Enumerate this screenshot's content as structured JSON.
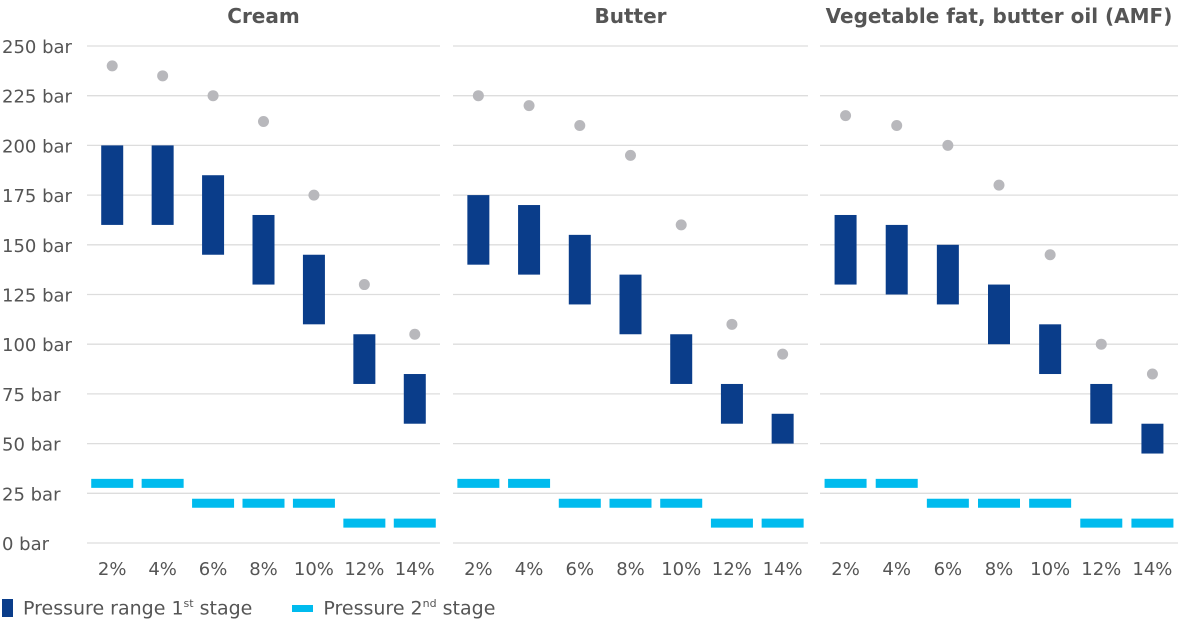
{
  "chart_data": [
    {
      "type": "floating-bar-with-markers",
      "title": "Cream",
      "categories": [
        "2%",
        "4%",
        "6%",
        "8%",
        "10%",
        "12%",
        "14%"
      ],
      "first_stage_range": [
        [
          160,
          200
        ],
        [
          160,
          200
        ],
        [
          145,
          185
        ],
        [
          130,
          165
        ],
        [
          110,
          145
        ],
        [
          80,
          105
        ],
        [
          60,
          85
        ]
      ],
      "second_stage": [
        30,
        30,
        20,
        20,
        20,
        10,
        10
      ],
      "dots": [
        240,
        235,
        225,
        212,
        175,
        130,
        105
      ]
    },
    {
      "type": "floating-bar-with-markers",
      "title": "Butter",
      "categories": [
        "2%",
        "4%",
        "6%",
        "8%",
        "10%",
        "12%",
        "14%"
      ],
      "first_stage_range": [
        [
          140,
          175
        ],
        [
          135,
          170
        ],
        [
          120,
          155
        ],
        [
          105,
          135
        ],
        [
          80,
          105
        ],
        [
          60,
          80
        ],
        [
          50,
          65
        ]
      ],
      "second_stage": [
        30,
        30,
        20,
        20,
        20,
        10,
        10
      ],
      "dots": [
        225,
        220,
        210,
        195,
        160,
        110,
        95
      ]
    },
    {
      "type": "floating-bar-with-markers",
      "title": "Vegetable fat, butter oil (AMF)",
      "categories": [
        "2%",
        "4%",
        "6%",
        "8%",
        "10%",
        "12%",
        "14%"
      ],
      "first_stage_range": [
        [
          130,
          165
        ],
        [
          125,
          160
        ],
        [
          120,
          150
        ],
        [
          100,
          130
        ],
        [
          85,
          110
        ],
        [
          60,
          80
        ],
        [
          45,
          60
        ]
      ],
      "second_stage": [
        30,
        30,
        20,
        20,
        20,
        10,
        10
      ],
      "dots": [
        215,
        210,
        200,
        180,
        145,
        100,
        85
      ]
    }
  ],
  "y_axis": {
    "ticks": [
      "0 bar",
      "25 bar",
      "50 bar",
      "75 bar",
      "100 bar",
      "125 bar",
      "150 bar",
      "175 bar",
      "200 bar",
      "225 bar",
      "250 bar"
    ],
    "ylim": [
      0,
      250
    ],
    "grid": true
  },
  "legend": {
    "placement": "bottom-left",
    "first_stage": {
      "pre": "Pressure range 1",
      "sup": "st",
      "post": " stage"
    },
    "second_stage": {
      "pre": "Pressure 2",
      "sup": "nd",
      "post": " stage"
    }
  },
  "colors": {
    "first_stage": "#0a3d8a",
    "second_stage": "#00bbee",
    "dots": "#b8b8bc",
    "grid": "#dddddd"
  }
}
